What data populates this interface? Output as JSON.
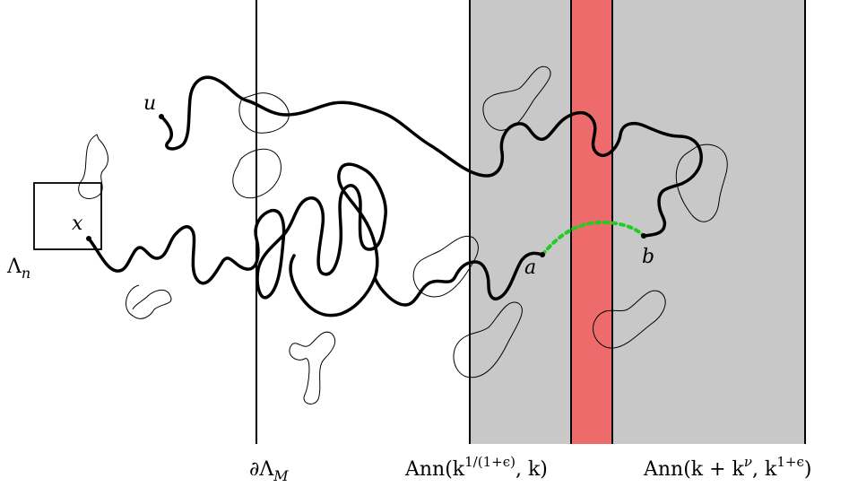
{
  "labels": {
    "u": "u",
    "x": "x",
    "lambda_n": "Λ",
    "lambda_n_sub": "n",
    "a": "a",
    "b": "b",
    "boundary_M_prefix": "∂Λ",
    "boundary_M_sub": "M",
    "ann_inner_prefix": "Ann(k",
    "ann_inner_sup": "1/(1+ϵ)",
    "ann_inner_suffix": ", k)",
    "ann_outer_prefix": "Ann(k + k",
    "ann_outer_sup1": "ν",
    "ann_outer_mid": ", k",
    "ann_outer_sup2": "1+ϵ",
    "ann_outer_suffix": ")"
  },
  "colors": {
    "annulus_fill": "#c8c8c8",
    "red_strip": "#ee6b6b",
    "connector": "#22cc22",
    "stroke": "#000000"
  }
}
